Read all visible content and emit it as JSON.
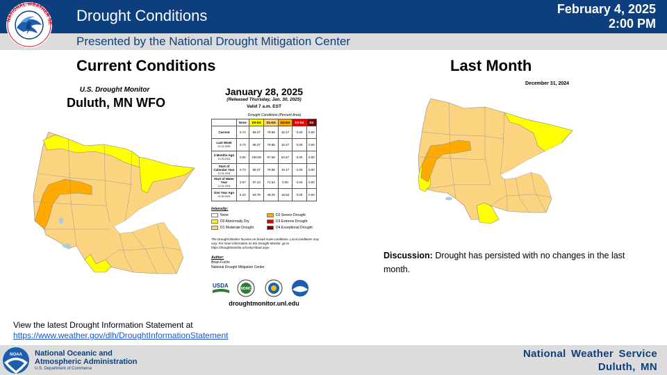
{
  "header": {
    "title": "Drought Conditions",
    "date": "February 4, 2025",
    "time": "2:00 PM",
    "subtitle": "Presented by the National Drought Mitigation Center",
    "logo_text": "NATIONAL WEATHER SERVICE"
  },
  "current": {
    "heading": "Current Conditions",
    "usdm_title": "U.S. Drought Monitor",
    "office": "Duluth, MN WFO"
  },
  "table": {
    "date": "January 28, 2025",
    "released": "(Released Thursday, Jan. 30, 2025)",
    "valid": "Valid 7 a.m. EST",
    "caption": "Drought Conditions (Percent Area)",
    "columns": [
      "None",
      "D0-D4",
      "D1-D4",
      "D2-D4",
      "D3-D4",
      "D4"
    ],
    "rows": [
      {
        "label": "Current",
        "sub": "",
        "values": [
          "0.73",
          "99.27",
          "79.88",
          "16.47",
          "0.00",
          "0.00"
        ]
      },
      {
        "label": "Last Week",
        "sub": "01-21-2025",
        "values": [
          "0.73",
          "99.27",
          "79.88",
          "16.47",
          "0.00",
          "0.00"
        ]
      },
      {
        "label": "3 Months Ago",
        "sub": "10-29-2024",
        "values": [
          "0.00",
          "100.00",
          "97.59",
          "84.67",
          "0.00",
          "0.00"
        ]
      },
      {
        "label": "Start of Calendar Year",
        "sub": "12-31-2024",
        "values": [
          "0.73",
          "99.27",
          "79.88",
          "16.47",
          "0.00",
          "0.00"
        ]
      },
      {
        "label": "Start of Water Year",
        "sub": "10-01-2024",
        "values": [
          "2.57",
          "97.43",
          "71.52",
          "0.00",
          "0.00",
          "0.00"
        ]
      },
      {
        "label": "One Year Ago",
        "sub": "01-30-2024",
        "values": [
          "6.22",
          "93.78",
          "49.29",
          "18.62",
          "0.00",
          "0.00"
        ]
      }
    ],
    "intensity_label": "Intensity:",
    "legend": [
      {
        "label": "None",
        "color": "#ffffff"
      },
      {
        "label": "D0 Abnormally Dry",
        "color": "#ffff00"
      },
      {
        "label": "D1 Moderate Drought",
        "color": "#fcd37f"
      },
      {
        "label": "D2 Severe Drought",
        "color": "#ffaa00"
      },
      {
        "label": "D3 Extreme Drought",
        "color": "#e60000"
      },
      {
        "label": "D4 Exceptional Drought",
        "color": "#730000"
      }
    ],
    "note": "The Drought Monitor focuses on broad-scale conditions. Local conditions may vary. For more information on the Drought Monitor, go to https://droughtmonitor.unl.edu/About.aspx",
    "author_label": "Author:",
    "author_name": "Brian Fuchs",
    "author_org": "National Drought Mitigation Center",
    "seals": [
      "USDA",
      "NDMC",
      "DOC",
      "NOAA"
    ],
    "site": "droughtmonitor.unl.edu"
  },
  "last_month": {
    "heading": "Last Month",
    "date": "December 31, 2024"
  },
  "discussion": {
    "label": "Discussion:",
    "text": " Drought has persisted with no changes in the last month."
  },
  "latest": {
    "text": "View the latest Drought Information Statement at",
    "link": "https://www.weather.gov/dlh/DroughtInformationStatement"
  },
  "footer": {
    "noaa_line1": "National Oceanic and",
    "noaa_line2": "Atmospheric Administration",
    "noaa_dept": "U.S. Department of Commerce",
    "noaa_logo": "NOAA",
    "nws_line1": "National Weather Service",
    "nws_line2": "Duluth, MN"
  },
  "colors": {
    "header_blue": "#0d3f7e",
    "band_gray": "#dcdcdc",
    "d0": "#ffff00",
    "d1": "#fcd37f",
    "d2": "#ffaa00",
    "lake": "#a6cee3"
  }
}
